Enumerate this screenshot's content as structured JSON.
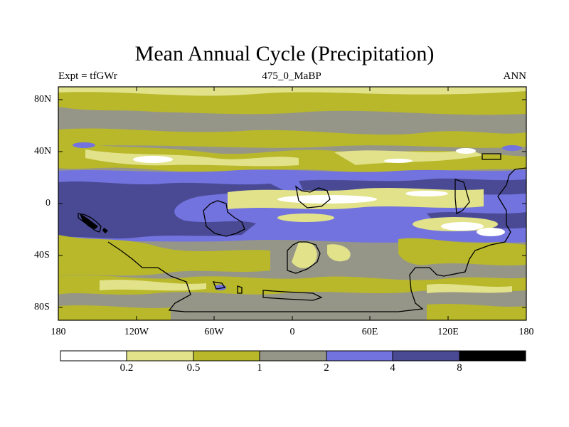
{
  "title": "Mean Annual Cycle (Precipitation)",
  "subtitle_left": "Expt = tfGWr",
  "subtitle_center": "475_0_MaBP",
  "subtitle_right": "ANN",
  "y_axis_labels": [
    "80N",
    "40N",
    "0",
    "40S",
    "80S"
  ],
  "x_axis_labels": [
    "180",
    "120W",
    "60W",
    "0",
    "60E",
    "120E",
    "180"
  ],
  "colorbar": {
    "labels": [
      "0.2",
      "0.5",
      "1",
      "2",
      "4",
      "8"
    ],
    "colors": [
      "#ffffff",
      "#e2e28a",
      "#b8b82a",
      "#969688",
      "#7373e0",
      "#4a4a94",
      "#000000"
    ]
  }
}
